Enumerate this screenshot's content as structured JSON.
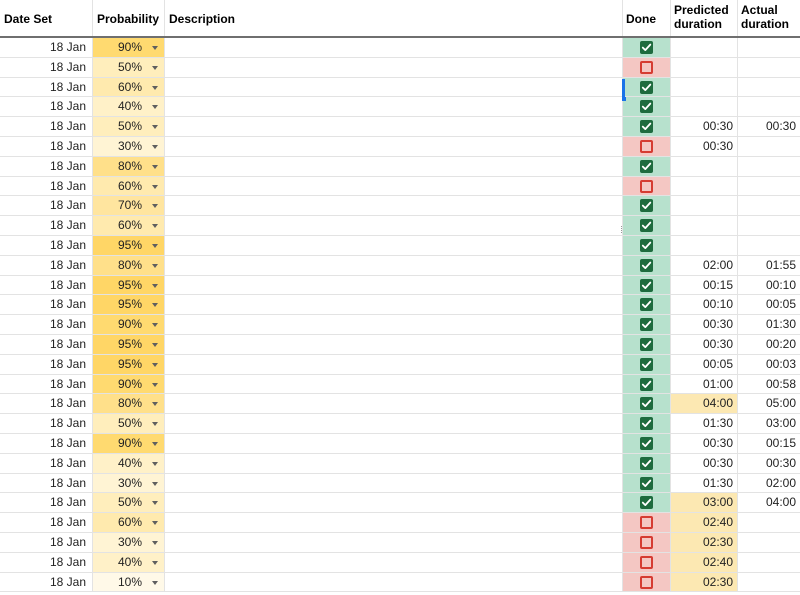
{
  "columns": {
    "date_set": "Date Set",
    "probability": "Probability",
    "description": "Description",
    "done": "Done",
    "predicted_line1": "Predicted",
    "predicted_line2": "duration",
    "actual_line1": "Actual",
    "actual_line2": "duration"
  },
  "colors": {
    "done_true_bg": "#b7e1cd",
    "done_false_bg": "#f4c7c3",
    "checkbox_checked": "#1e6b3e",
    "checkbox_unchecked": "#d53c32",
    "pred_highlight_bg": "#fce8b2",
    "selection_blue": "#1a73e8",
    "prob_95": "#ffd666",
    "prob_90": "#ffda70",
    "prob_80": "#ffe08a",
    "prob_70": "#ffe59f",
    "prob_60": "#ffeaae",
    "prob_50": "#ffeebc",
    "prob_40": "#fff1c8",
    "prob_30": "#fff4d4",
    "prob_10": "#fff9e8"
  },
  "rows": [
    {
      "date": "18 Jan",
      "prob": "90%",
      "desc": "",
      "done": true,
      "pred": "",
      "act": "",
      "pred_hl": false
    },
    {
      "date": "18 Jan",
      "prob": "50%",
      "desc": "",
      "done": false,
      "pred": "",
      "act": "",
      "pred_hl": false
    },
    {
      "date": "18 Jan",
      "prob": "60%",
      "desc": "",
      "done": true,
      "pred": "",
      "act": "",
      "pred_hl": false
    },
    {
      "date": "18 Jan",
      "prob": "40%",
      "desc": "",
      "done": true,
      "pred": "",
      "act": "",
      "pred_hl": false
    },
    {
      "date": "18 Jan",
      "prob": "50%",
      "desc": "",
      "done": true,
      "pred": "00:30",
      "act": "00:30",
      "pred_hl": false
    },
    {
      "date": "18 Jan",
      "prob": "30%",
      "desc": "",
      "done": false,
      "pred": "00:30",
      "act": "",
      "pred_hl": false
    },
    {
      "date": "18 Jan",
      "prob": "80%",
      "desc": "",
      "done": true,
      "pred": "",
      "act": "",
      "pred_hl": false
    },
    {
      "date": "18 Jan",
      "prob": "60%",
      "desc": "",
      "done": false,
      "pred": "",
      "act": "",
      "pred_hl": false
    },
    {
      "date": "18 Jan",
      "prob": "70%",
      "desc": "",
      "done": true,
      "pred": "",
      "act": "",
      "pred_hl": false
    },
    {
      "date": "18 Jan",
      "prob": "60%",
      "desc": "",
      "done": true,
      "pred": "",
      "act": "",
      "pred_hl": false
    },
    {
      "date": "18 Jan",
      "prob": "95%",
      "desc": "",
      "done": true,
      "pred": "",
      "act": "",
      "pred_hl": false
    },
    {
      "date": "18 Jan",
      "prob": "80%",
      "desc": "",
      "done": true,
      "pred": "02:00",
      "act": "01:55",
      "pred_hl": false
    },
    {
      "date": "18 Jan",
      "prob": "95%",
      "desc": "",
      "done": true,
      "pred": "00:15",
      "act": "00:10",
      "pred_hl": false
    },
    {
      "date": "18 Jan",
      "prob": "95%",
      "desc": "",
      "done": true,
      "pred": "00:10",
      "act": "00:05",
      "pred_hl": false
    },
    {
      "date": "18 Jan",
      "prob": "90%",
      "desc": "",
      "done": true,
      "pred": "00:30",
      "act": "01:30",
      "pred_hl": false
    },
    {
      "date": "18 Jan",
      "prob": "95%",
      "desc": "",
      "done": true,
      "pred": "00:30",
      "act": "00:20",
      "pred_hl": false
    },
    {
      "date": "18 Jan",
      "prob": "95%",
      "desc": "",
      "done": true,
      "pred": "00:05",
      "act": "00:03",
      "pred_hl": false
    },
    {
      "date": "18 Jan",
      "prob": "90%",
      "desc": "",
      "done": true,
      "pred": "01:00",
      "act": "00:58",
      "pred_hl": false
    },
    {
      "date": "18 Jan",
      "prob": "80%",
      "desc": "",
      "done": true,
      "pred": "04:00",
      "act": "05:00",
      "pred_hl": true
    },
    {
      "date": "18 Jan",
      "prob": "50%",
      "desc": "",
      "done": true,
      "pred": "01:30",
      "act": "03:00",
      "pred_hl": false
    },
    {
      "date": "18 Jan",
      "prob": "90%",
      "desc": "",
      "done": true,
      "pred": "00:30",
      "act": "00:15",
      "pred_hl": false
    },
    {
      "date": "18 Jan",
      "prob": "40%",
      "desc": "",
      "done": true,
      "pred": "00:30",
      "act": "00:30",
      "pred_hl": false
    },
    {
      "date": "18 Jan",
      "prob": "30%",
      "desc": "",
      "done": true,
      "pred": "01:30",
      "act": "02:00",
      "pred_hl": false
    },
    {
      "date": "18 Jan",
      "prob": "50%",
      "desc": "",
      "done": true,
      "pred": "03:00",
      "act": "04:00",
      "pred_hl": true
    },
    {
      "date": "18 Jan",
      "prob": "60%",
      "desc": "",
      "done": false,
      "pred": "02:40",
      "act": "",
      "pred_hl": true
    },
    {
      "date": "18 Jan",
      "prob": "30%",
      "desc": "",
      "done": false,
      "pred": "02:30",
      "act": "",
      "pred_hl": true
    },
    {
      "date": "18 Jan",
      "prob": "40%",
      "desc": "",
      "done": false,
      "pred": "02:40",
      "act": "",
      "pred_hl": true
    },
    {
      "date": "18 Jan",
      "prob": "10%",
      "desc": "",
      "done": false,
      "pred": "02:30",
      "act": "",
      "pred_hl": true
    }
  ]
}
